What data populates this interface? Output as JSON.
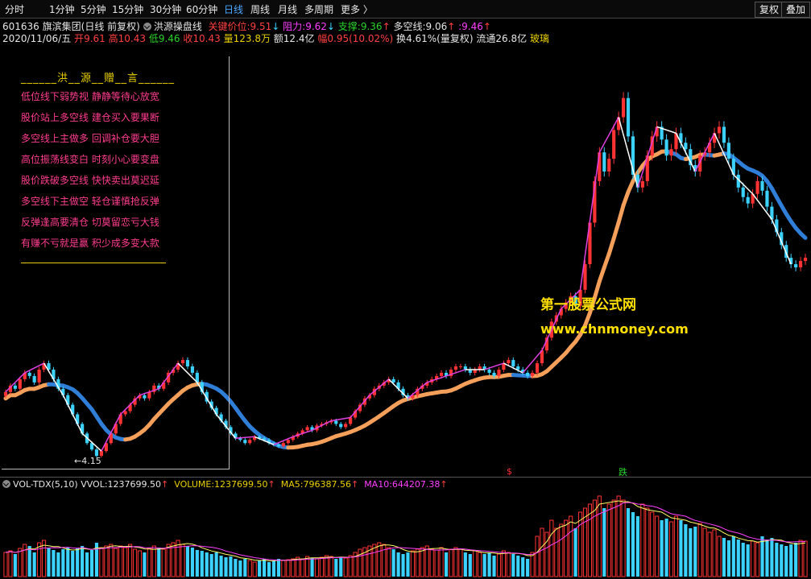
{
  "toolbar": {
    "periods": [
      "分时",
      "1分钟",
      "5分钟",
      "15分钟",
      "30分钟",
      "60分钟",
      "日线",
      "周线",
      "月线",
      "多周期",
      "更多 〉"
    ],
    "active_index": 6,
    "right_buttons": [
      "复权",
      "叠加"
    ]
  },
  "info": {
    "code": "601636",
    "name": "旗滨集团(日线 前复权)",
    "indicator": "洪源操盘线",
    "key_price_label": "关键价位:",
    "key_price": "9.51",
    "resistance_label": "阻力:",
    "resistance": "9.62",
    "support_label": "支撑:",
    "support": "9.36",
    "dkx_label": "多空线:",
    "dkx": "9.06",
    "extra_label": ":",
    "extra": "9.46",
    "date": "2020/11/06/五",
    "open_label": "开",
    "open": "9.61",
    "high_label": "高",
    "high": "10.43",
    "low_label": "低",
    "low": "9.46",
    "close_label": "收",
    "close": "10.43",
    "vol_label": "量",
    "vol": "123.8万",
    "amt_label": "额",
    "amt": "12.4亿",
    "chg_label": "幅",
    "chg": "0.95(10.02%)",
    "turn_label": "换",
    "turn": "4.61%(量复权)",
    "float_label": "流通",
    "float": "26.8亿",
    "sector": "玻璃"
  },
  "poem": {
    "title": "______洪__源__赠__言______",
    "lines": [
      "低位线下弱势视 静静等待心放宽",
      "股价站上多空线 建仓买入要果断",
      "多空线上主做多 回调补仓要大胆",
      "高位振荡线变白 时刻小心要变盘",
      "股价跌破多空线 快快卖出莫迟延",
      "多空线下主做空 轻仓谨慎抢反弹",
      "反弹逢高要清仓 切莫留恋亏大钱",
      "有赚不亏就是赢 积少成多变大款"
    ]
  },
  "watermark": {
    "line1": "第一股票公式网",
    "line2": "www.chnmoney.com"
  },
  "annotations": {
    "low_price": "←4.15",
    "mark_s": "$",
    "mark_d": "跌"
  },
  "volume": {
    "name": "VOL-TDX(5,10)",
    "vvol_label": "VVOL:",
    "vvol": "1237699.50",
    "volume_label": "VOLUME:",
    "volume": "1237699.50",
    "ma5_label": "MA5:",
    "ma5": "796387.56",
    "ma10_label": "MA10:",
    "ma10": "644207.38"
  },
  "colors": {
    "up": "#ff3333",
    "down": "#3cd2ff",
    "ma_orange": "#f4a05a",
    "ma_blue": "#2f7fd8",
    "zigzag_up": "#e040e0",
    "zigzag_down": "#ffffff",
    "vol_ma5": "#ffff66",
    "vol_ma10": "#ff40ff"
  },
  "chart_data": {
    "type": "candlestick",
    "price_close": [
      6.2,
      6.4,
      6.3,
      6.6,
      6.8,
      6.7,
      6.5,
      6.9,
      7.1,
      6.9,
      6.6,
      6.3,
      6.1,
      5.8,
      5.5,
      5.2,
      4.9,
      4.6,
      4.4,
      4.2,
      4.35,
      4.6,
      4.9,
      5.2,
      5.5,
      5.6,
      5.8,
      6.0,
      6.1,
      6.0,
      6.2,
      6.4,
      6.3,
      6.5,
      6.8,
      6.9,
      7.1,
      7.2,
      7.0,
      6.8,
      6.5,
      6.2,
      5.9,
      5.7,
      5.5,
      5.3,
      5.1,
      4.9,
      4.75,
      4.7,
      4.6,
      4.7,
      4.8,
      4.75,
      4.7,
      4.6,
      4.55,
      4.5,
      4.6,
      4.7,
      4.8,
      4.9,
      5.0,
      5.1,
      5.0,
      5.15,
      5.2,
      5.25,
      5.3,
      5.2,
      5.1,
      5.2,
      5.4,
      5.6,
      5.8,
      6.0,
      6.1,
      6.3,
      6.4,
      6.5,
      6.6,
      6.5,
      6.3,
      6.1,
      6.0,
      6.1,
      6.3,
      6.4,
      6.5,
      6.6,
      6.7,
      6.8,
      6.7,
      6.9,
      7.0,
      7.0,
      6.9,
      6.8,
      6.9,
      7.0,
      6.9,
      6.8,
      6.7,
      6.9,
      7.1,
      7.2,
      7.0,
      6.9,
      6.8,
      6.7,
      6.8,
      7.1,
      7.5,
      7.9,
      8.4,
      8.6,
      8.8,
      9.0,
      9.2,
      8.9,
      9.4,
      10.2,
      11.5,
      12.8,
      13.7,
      13.1,
      13.5,
      14.4,
      14.8,
      15.4,
      14.2,
      13.0,
      12.6,
      12.8,
      13.6,
      14.2,
      14.5,
      14.1,
      13.6,
      13.8,
      14.3,
      14.0,
      13.8,
      13.3,
      13.1,
      13.6,
      13.7,
      14.0,
      14.3,
      14.5,
      14.0,
      13.5,
      13.0,
      12.6,
      12.3,
      12.1,
      12.4,
      12.8,
      12.5,
      12.0,
      11.6,
      11.2,
      10.8,
      10.4,
      10.2,
      10.1,
      10.3,
      10.4
    ],
    "volume": [
      0.3,
      0.32,
      0.28,
      0.35,
      0.4,
      0.38,
      0.3,
      0.42,
      0.45,
      0.36,
      0.33,
      0.3,
      0.34,
      0.36,
      0.32,
      0.35,
      0.38,
      0.3,
      0.33,
      0.42,
      0.36,
      0.38,
      0.4,
      0.35,
      0.38,
      0.36,
      0.4,
      0.34,
      0.32,
      0.3,
      0.35,
      0.38,
      0.36,
      0.34,
      0.4,
      0.42,
      0.45,
      0.4,
      0.38,
      0.36,
      0.33,
      0.32,
      0.3,
      0.28,
      0.3,
      0.26,
      0.24,
      0.25,
      0.22,
      0.2,
      0.22,
      0.2,
      0.18,
      0.2,
      0.22,
      0.18,
      0.2,
      0.22,
      0.2,
      0.21,
      0.22,
      0.24,
      0.22,
      0.25,
      0.23,
      0.22,
      0.24,
      0.26,
      0.25,
      0.22,
      0.24,
      0.23,
      0.26,
      0.3,
      0.34,
      0.36,
      0.38,
      0.4,
      0.42,
      0.4,
      0.36,
      0.34,
      0.3,
      0.28,
      0.3,
      0.32,
      0.34,
      0.36,
      0.38,
      0.34,
      0.33,
      0.36,
      0.3,
      0.34,
      0.36,
      0.34,
      0.3,
      0.28,
      0.32,
      0.3,
      0.28,
      0.3,
      0.26,
      0.28,
      0.32,
      0.3,
      0.28,
      0.26,
      0.24,
      0.22,
      0.3,
      0.5,
      0.6,
      0.55,
      0.7,
      0.6,
      0.65,
      0.7,
      0.75,
      0.6,
      0.8,
      0.85,
      0.9,
      0.95,
      1.0,
      0.85,
      0.9,
      0.95,
      1.0,
      0.95,
      0.85,
      0.8,
      0.75,
      0.9,
      0.85,
      0.8,
      0.75,
      0.7,
      0.72,
      0.68,
      0.75,
      0.7,
      0.65,
      0.6,
      0.62,
      0.66,
      0.6,
      0.55,
      0.58,
      0.5,
      0.48,
      0.45,
      0.5,
      0.46,
      0.42,
      0.4,
      0.44,
      0.42,
      0.5,
      0.46,
      0.48,
      0.42,
      0.4,
      0.38,
      0.4,
      0.42,
      0.45,
      0.44
    ],
    "ylim": [
      3.9,
      16.2
    ]
  }
}
